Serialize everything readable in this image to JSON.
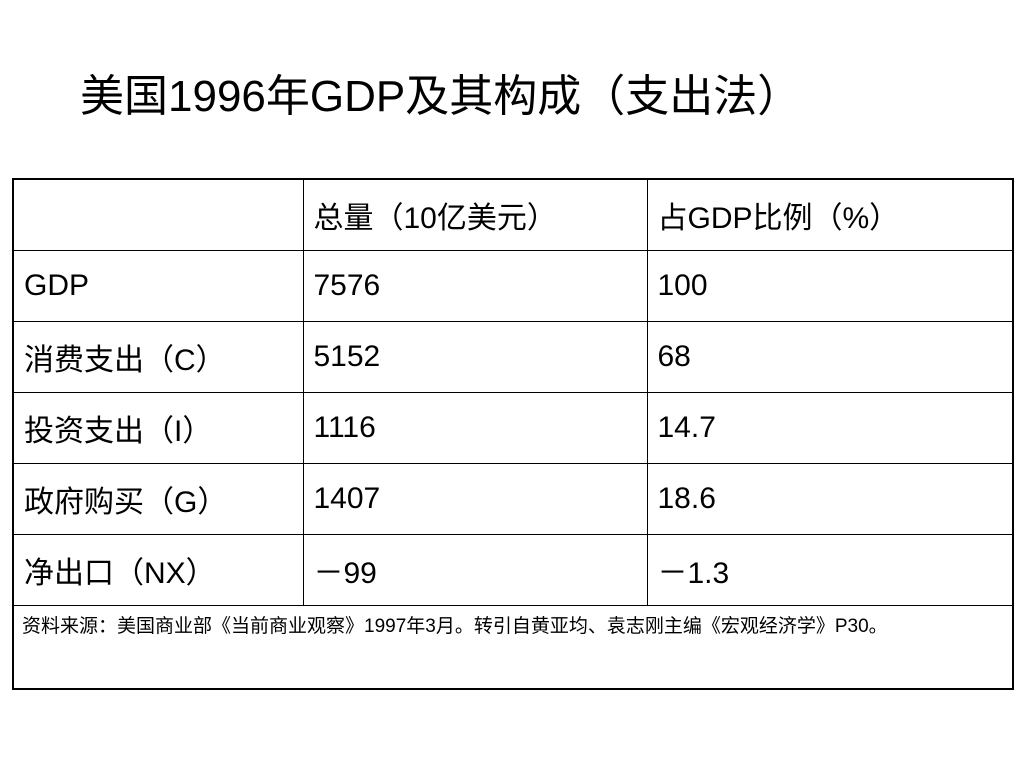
{
  "slide": {
    "title": "美国1996年GDP及其构成（支出法）"
  },
  "table": {
    "headers": [
      "",
      "总量（10亿美元）",
      "占GDP比例（%）"
    ],
    "rows": [
      {
        "label": "GDP",
        "total": "7576",
        "share": "100"
      },
      {
        "label": "消费支出（C）",
        "total": "5152",
        "share": "68"
      },
      {
        "label": "投资支出（I）",
        "total": "1116",
        "share": "14.7"
      },
      {
        "label": "政府购买（G）",
        "total": "1407",
        "share": "18.6"
      },
      {
        "label": "净出口（NX）",
        "total": "－99",
        "share": "－1.3"
      }
    ],
    "source_note": "资料来源：美国商业部《当前商业观察》1997年3月。转引自黄亚均、袁志刚主编《宏观经济学》P30。"
  }
}
